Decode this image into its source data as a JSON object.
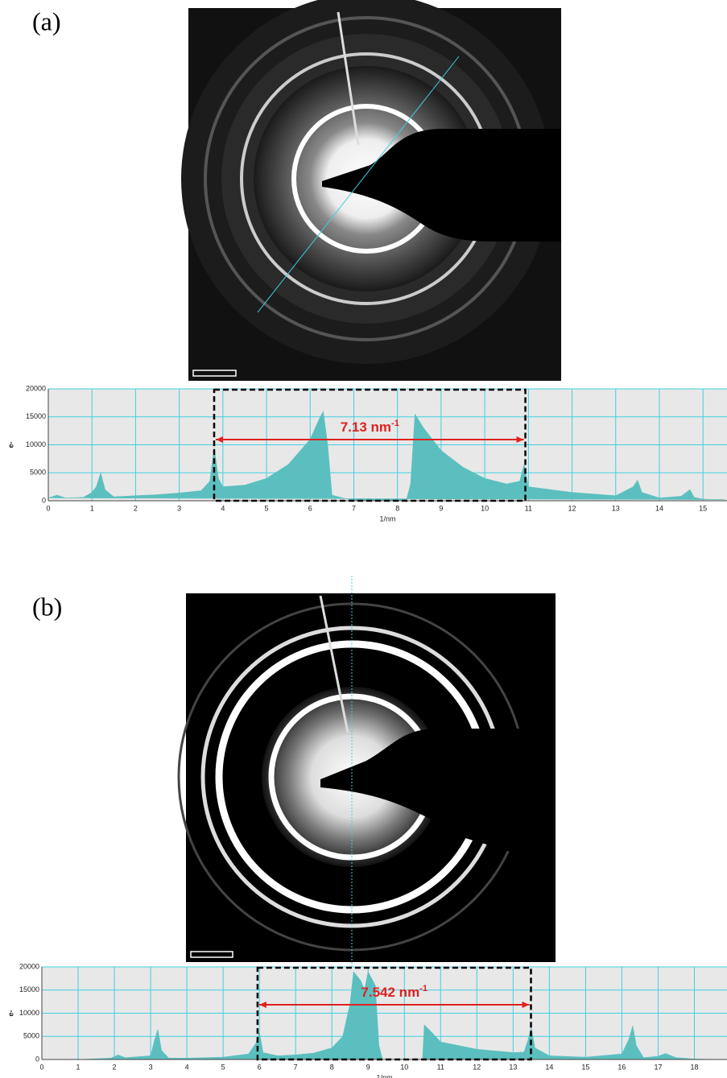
{
  "chart_data": [
    {
      "type": "area",
      "label": "(a)",
      "xlabel": "1/nm",
      "ylabel": "e-",
      "color": "#5bbfbf",
      "grid": true,
      "xlim": [
        0,
        15.55
      ],
      "ylim": [
        0,
        20000
      ],
      "xticks": [
        0,
        1,
        2,
        3,
        4,
        5,
        6,
        7,
        8,
        9,
        10,
        11,
        12,
        13,
        14,
        15
      ],
      "yticks": [
        0,
        5000,
        10000,
        15000,
        20000
      ],
      "range": [
        3.8,
        10.93
      ],
      "annotation": {
        "text": "7.13 nm",
        "sup": "-1"
      },
      "x": [
        0,
        0.2,
        0.4,
        0.8,
        1.0,
        1.1,
        1.2,
        1.3,
        1.5,
        2,
        2.5,
        3,
        3.5,
        3.7,
        3.8,
        3.9,
        4,
        4.5,
        5,
        5.5,
        6,
        6.2,
        6.3,
        6.4,
        6.5,
        7,
        8.2,
        8.3,
        8.4,
        8.6,
        9,
        9.5,
        10,
        10.5,
        10.8,
        10.9,
        11,
        12,
        13,
        13.4,
        13.5,
        13.6,
        14,
        14.5,
        14.7,
        14.8,
        15,
        15.5
      ],
      "values": [
        500,
        1000,
        500,
        600,
        1500,
        2500,
        5000,
        2000,
        700,
        900,
        1100,
        1400,
        1800,
        3500,
        9500,
        4000,
        2500,
        2800,
        4000,
        6500,
        11000,
        14500,
        16000,
        10000,
        1000,
        0,
        0,
        3000,
        15500,
        13000,
        9000,
        6000,
        4000,
        3000,
        3500,
        6500,
        2500,
        1500,
        900,
        2500,
        3700,
        1500,
        500,
        800,
        2000,
        600,
        300,
        200
      ]
    },
    {
      "type": "area",
      "label": "(b)",
      "xlabel": "1/nm",
      "ylabel": "e-",
      "color": "#5bbfbf",
      "grid": true,
      "xlim": [
        0,
        18.9
      ],
      "ylim": [
        0,
        20000
      ],
      "xticks": [
        0,
        1,
        2,
        3,
        4,
        5,
        6,
        7,
        8,
        9,
        10,
        11,
        12,
        13,
        14,
        15,
        16,
        17,
        18
      ],
      "yticks": [
        0,
        5000,
        10000,
        15000,
        20000
      ],
      "range": [
        5.95,
        13.492
      ],
      "annotation": {
        "text": "7.542 nm",
        "sup": "-1"
      },
      "x": [
        0,
        1,
        1.9,
        2.1,
        2.3,
        3,
        3.1,
        3.2,
        3.3,
        3.5,
        4,
        5,
        5.7,
        5.9,
        6,
        6.1,
        6.5,
        7,
        7.5,
        8,
        8.3,
        8.5,
        8.6,
        8.8,
        8.9,
        9.0,
        9.1,
        9.2,
        9.3,
        9.4,
        10.5,
        10.55,
        10.8,
        11,
        12,
        13,
        13.3,
        13.4,
        13.5,
        13.6,
        14,
        15,
        16,
        16.2,
        16.3,
        16.4,
        16.6,
        17,
        17.2,
        17.5,
        18,
        18.9
      ],
      "values": [
        0,
        0,
        300,
        1000,
        400,
        800,
        4000,
        6500,
        2000,
        300,
        300,
        500,
        1200,
        3500,
        6000,
        1500,
        800,
        1000,
        1400,
        2500,
        5000,
        12000,
        19000,
        17000,
        15000,
        19000,
        17500,
        16000,
        3000,
        0,
        0,
        7500,
        5500,
        3800,
        2200,
        1500,
        1600,
        4000,
        7000,
        2500,
        800,
        500,
        1200,
        4500,
        7300,
        3000,
        400,
        700,
        1300,
        400,
        100,
        0
      ]
    }
  ]
}
